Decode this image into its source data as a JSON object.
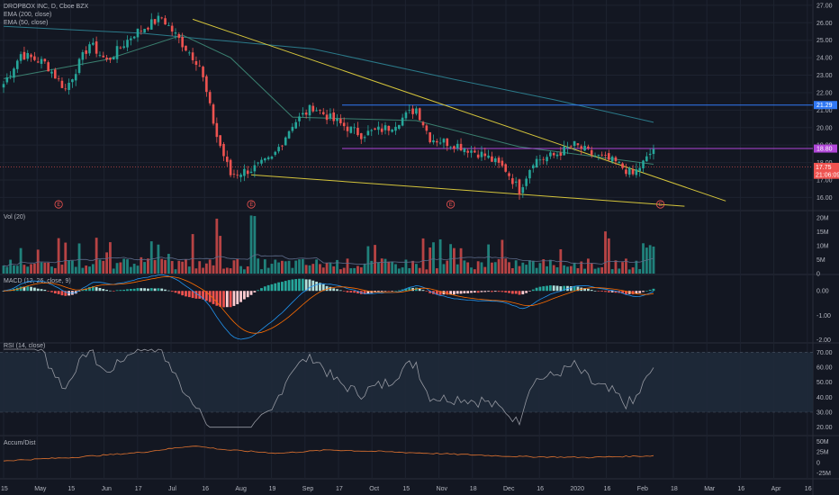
{
  "colors": {
    "background": "#131722",
    "grid": "#1e2330",
    "text": "#b2b5be",
    "up": "#26a69a",
    "down": "#ef5350",
    "ema200": "#2b7a8a",
    "ema50": "#3a7f6f",
    "trendline": "#d4c43b",
    "resistance_line": "#3179f5",
    "magenta_line": "#b046d8",
    "rsi_line": "#9598a1",
    "rsi_band": "#1f2a3a",
    "accum_line": "#e0722f",
    "macd_line": "#2196f3",
    "signal_line": "#ff6d00"
  },
  "chart_data": [
    {
      "type": "candlestick",
      "panel": "price",
      "title": "DROPBOX INC, D, Cboe BZX",
      "legend": [
        "EMA (200, close)",
        "EMA (50, close)"
      ],
      "y_ticks": [
        "27.00",
        "26.00",
        "25.00",
        "24.00",
        "23.00",
        "22.00",
        "21.00",
        "20.00",
        "19.00",
        "18.00",
        "17.00",
        "16.00"
      ],
      "ylim": [
        15.3,
        27.2
      ],
      "x_ticks": [
        "15",
        "May",
        "15",
        "Jun",
        "17",
        "Jul",
        "16",
        "Aug",
        "19",
        "Sep",
        "17",
        "Oct",
        "15",
        "Nov",
        "18",
        "Dec",
        "16",
        "2020",
        "16",
        "Feb",
        "18",
        "Mar",
        "16",
        "Apr",
        "16"
      ],
      "anchors": [
        [
          0,
          22.5
        ],
        [
          5,
          24.2
        ],
        [
          12,
          23.7
        ],
        [
          18,
          22.2
        ],
        [
          25,
          24.8
        ],
        [
          30,
          23.8
        ],
        [
          38,
          25.4
        ],
        [
          46,
          26.3
        ],
        [
          52,
          24.8
        ],
        [
          57,
          23.6
        ],
        [
          62,
          19.5
        ],
        [
          66,
          17.3
        ],
        [
          72,
          17.6
        ],
        [
          78,
          18.2
        ],
        [
          84,
          20.2
        ],
        [
          90,
          21.2
        ],
        [
          96,
          20.4
        ],
        [
          104,
          19.6
        ],
        [
          112,
          20.0
        ],
        [
          120,
          21.1
        ],
        [
          124,
          19.4
        ],
        [
          132,
          19.0
        ],
        [
          140,
          18.4
        ],
        [
          146,
          17.6
        ],
        [
          150,
          16.4
        ],
        [
          154,
          18.1
        ],
        [
          160,
          18.4
        ],
        [
          166,
          19.0
        ],
        [
          172,
          18.4
        ],
        [
          178,
          18.0
        ],
        [
          183,
          17.3
        ],
        [
          187,
          18.2
        ],
        [
          189,
          18.8
        ]
      ],
      "ema200": [
        [
          0,
          25.8
        ],
        [
          40,
          25.4
        ],
        [
          90,
          24.5
        ],
        [
          130,
          22.8
        ],
        [
          160,
          21.6
        ],
        [
          189,
          20.3
        ]
      ],
      "ema50": [
        [
          0,
          22.8
        ],
        [
          30,
          23.9
        ],
        [
          52,
          25.3
        ],
        [
          66,
          24.0
        ],
        [
          84,
          20.6
        ],
        [
          120,
          20.4
        ],
        [
          150,
          18.9
        ],
        [
          189,
          17.9
        ]
      ],
      "trendline_upper": [
        [
          55,
          26.2
        ],
        [
          210,
          15.8
        ]
      ],
      "trendline_lower": [
        [
          72,
          17.3
        ],
        [
          198,
          15.5
        ]
      ],
      "horizontal_lines": [
        {
          "value": 21.29,
          "label": "21.29",
          "color": "#3179f5"
        },
        {
          "value": 18.8,
          "label": "18.80",
          "color": "#b046d8"
        }
      ],
      "price_badges": [
        {
          "value": 17.75,
          "label": "17.75",
          "color": "#ef5350"
        },
        {
          "value": 17.3,
          "label": "21:06:09",
          "color": "#ef5350"
        }
      ],
      "earnings_markers": [
        {
          "index": 16,
          "label": "E"
        },
        {
          "index": 72,
          "label": "E"
        },
        {
          "index": 130,
          "label": "E"
        },
        {
          "index": 191,
          "label": "E"
        }
      ]
    },
    {
      "type": "bar",
      "panel": "volume",
      "title": "Vol (20)",
      "y_ticks": [
        "20M",
        "15M",
        "10M",
        "5M",
        "0"
      ],
      "ylim": [
        0,
        22
      ]
    },
    {
      "type": "bar",
      "panel": "macd",
      "title": "MACD (12, 26, close, 9)",
      "y_ticks": [
        "0.00",
        "-1.00",
        "-2.00"
      ],
      "ylim": [
        -2.1,
        0.6
      ]
    },
    {
      "type": "line",
      "panel": "rsi",
      "title": "RSI (14, close)",
      "y_ticks": [
        "70.00",
        "60.00",
        "50.00",
        "40.00",
        "30.00",
        "20.00"
      ],
      "ylim": [
        15,
        75
      ],
      "band": [
        30,
        70
      ]
    },
    {
      "type": "line",
      "panel": "accum",
      "title": "Accum/Dist",
      "y_ticks": [
        "50M",
        "25M",
        "0",
        "-25M"
      ],
      "ylim": [
        -35,
        60
      ]
    }
  ]
}
